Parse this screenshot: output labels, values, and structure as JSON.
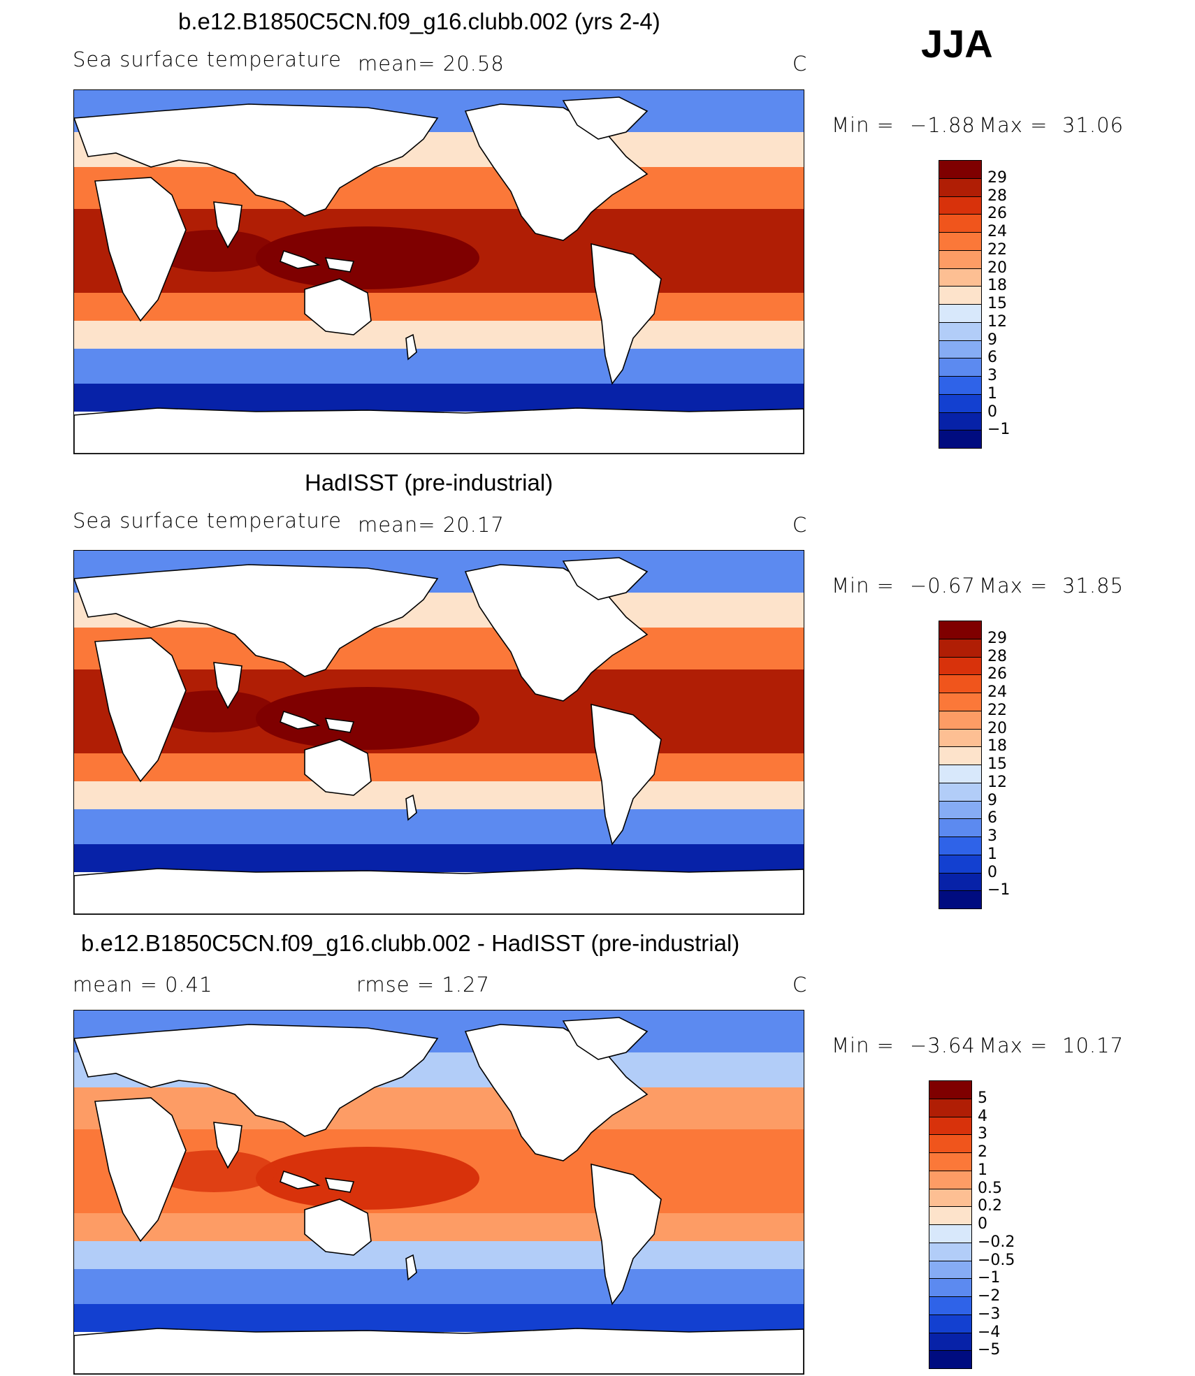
{
  "season": "JJA",
  "panels": [
    {
      "title": "b.e12.B1850C5CN.f09_g16.clubb.002 (yrs 2-4)",
      "left_label": "Sea surface temperature",
      "mid_label": "mean=  20.58",
      "units": "C",
      "min_label": "Min =",
      "min_value": "−1.88",
      "max_label": "Max =",
      "max_value": "31.06",
      "colorbar": {
        "ticks": [
          "29",
          "28",
          "26",
          "24",
          "22",
          "20",
          "18",
          "15",
          "12",
          "9",
          "6",
          "3",
          "1",
          "0",
          "−1"
        ],
        "colors": [
          "#7f0000",
          "#b01e05",
          "#d8320b",
          "#f0551c",
          "#fb7839",
          "#fd9c65",
          "#fdbf93",
          "#fde3cb",
          "#d8e8fb",
          "#b2cdf8",
          "#86acf4",
          "#5c8af0",
          "#2f63e8",
          "#1340d0",
          "#0722a8",
          "#000c80"
        ]
      },
      "map_palette": {
        "warm": "#b01e05",
        "hot": "#7f0000",
        "mid": "#fb7839",
        "cool": "#fde3cb",
        "cold": "#5c8af0",
        "frozen": "#0722a8"
      }
    },
    {
      "title": "HadISST (pre-industrial)",
      "left_label": "Sea surface temperature",
      "mid_label": "mean=  20.17",
      "units": "C",
      "min_label": "Min =",
      "min_value": "−0.67",
      "max_label": "Max =",
      "max_value": "31.85",
      "colorbar": {
        "ticks": [
          "29",
          "28",
          "26",
          "24",
          "22",
          "20",
          "18",
          "15",
          "12",
          "9",
          "6",
          "3",
          "1",
          "0",
          "−1"
        ],
        "colors": [
          "#7f0000",
          "#b01e05",
          "#d8320b",
          "#f0551c",
          "#fb7839",
          "#fd9c65",
          "#fdbf93",
          "#fde3cb",
          "#d8e8fb",
          "#b2cdf8",
          "#86acf4",
          "#5c8af0",
          "#2f63e8",
          "#1340d0",
          "#0722a8",
          "#000c80"
        ]
      },
      "map_palette": {
        "warm": "#b01e05",
        "hot": "#7f0000",
        "mid": "#fb7839",
        "cool": "#fde3cb",
        "cold": "#5c8af0",
        "frozen": "#0722a8"
      }
    },
    {
      "title": "b.e12.B1850C5CN.f09_g16.clubb.002 - HadISST (pre-industrial)",
      "left_label": "mean =    0.41",
      "mid_label": "rmse =    1.27",
      "units": "C",
      "min_label": "Min =",
      "min_value": "−3.64",
      "max_label": "Max =",
      "max_value": "10.17",
      "colorbar": {
        "ticks": [
          "5",
          "4",
          "3",
          "2",
          "1",
          "0.5",
          "0.2",
          "0",
          "−0.2",
          "−0.5",
          "−1",
          "−2",
          "−3",
          "−4",
          "−5"
        ],
        "colors": [
          "#7f0000",
          "#b01e05",
          "#d8320b",
          "#f0551c",
          "#fb7839",
          "#fd9c65",
          "#fdbf93",
          "#fde3cb",
          "#d8e8fb",
          "#b2cdf8",
          "#86acf4",
          "#5c8af0",
          "#2f63e8",
          "#1340d0",
          "#0722a8",
          "#000c80"
        ]
      },
      "map_palette": {
        "warm": "#fb7839",
        "hot": "#d8320b",
        "mid": "#fd9c65",
        "cool": "#b2cdf8",
        "cold": "#5c8af0",
        "frozen": "#1340d0"
      }
    }
  ]
}
